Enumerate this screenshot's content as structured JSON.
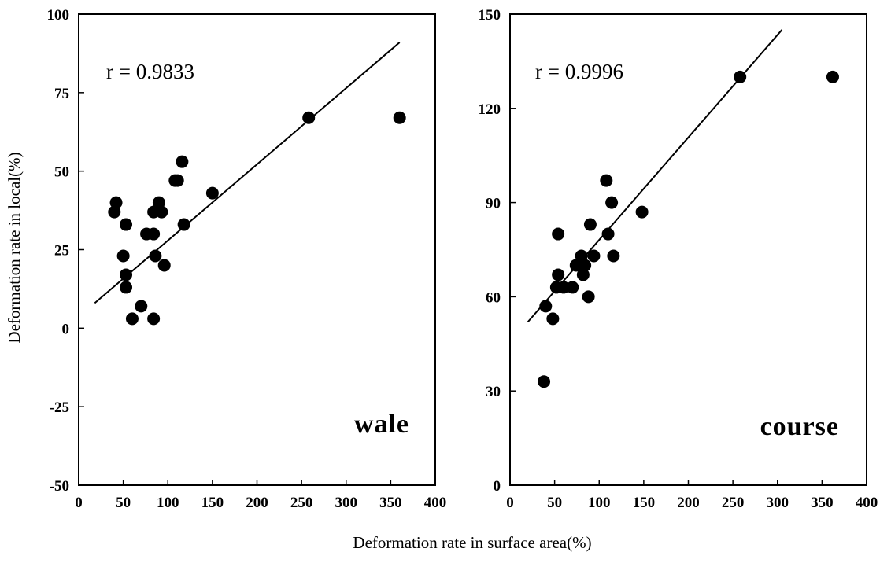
{
  "figure": {
    "shared_xlabel": "Deformation rate in surface area(%)",
    "shared_ylabel": "Deformation rate in local(%)"
  },
  "chart_data": [
    {
      "type": "scatter",
      "panel_label": "wale",
      "annotation": "r  =  0.9833",
      "xlim": [
        0,
        400
      ],
      "ylim": [
        -50,
        100
      ],
      "xticks": [
        "0",
        "50",
        "100",
        "150",
        "200",
        "250",
        "300",
        "350",
        "400"
      ],
      "yticks": [
        "100",
        "75",
        "50",
        "25",
        "0",
        "-25",
        "-50"
      ],
      "xtick_values": [
        0,
        50,
        100,
        150,
        200,
        250,
        300,
        350,
        400
      ],
      "ytick_values": [
        100,
        75,
        50,
        25,
        0,
        -25,
        -50
      ],
      "grid": false,
      "points": [
        {
          "x": 40,
          "y": 37
        },
        {
          "x": 42,
          "y": 40
        },
        {
          "x": 50,
          "y": 23
        },
        {
          "x": 53,
          "y": 33
        },
        {
          "x": 53,
          "y": 17
        },
        {
          "x": 53,
          "y": 13
        },
        {
          "x": 60,
          "y": 3
        },
        {
          "x": 70,
          "y": 7
        },
        {
          "x": 76,
          "y": 30
        },
        {
          "x": 84,
          "y": 30
        },
        {
          "x": 84,
          "y": 37
        },
        {
          "x": 84,
          "y": 3
        },
        {
          "x": 86,
          "y": 23
        },
        {
          "x": 90,
          "y": 40
        },
        {
          "x": 93,
          "y": 37
        },
        {
          "x": 96,
          "y": 20
        },
        {
          "x": 108,
          "y": 47
        },
        {
          "x": 111,
          "y": 47
        },
        {
          "x": 116,
          "y": 53
        },
        {
          "x": 118,
          "y": 33
        },
        {
          "x": 150,
          "y": 43
        },
        {
          "x": 258,
          "y": 67
        },
        {
          "x": 360,
          "y": 67
        }
      ],
      "fit_line": {
        "x": [
          18,
          360
        ],
        "y": [
          8,
          91
        ]
      }
    },
    {
      "type": "scatter",
      "panel_label": "course",
      "annotation": "r  =  0.9996",
      "xlim": [
        0,
        400
      ],
      "ylim": [
        0,
        150
      ],
      "xticks": [
        "0",
        "50",
        "100",
        "150",
        "200",
        "250",
        "300",
        "350",
        "400"
      ],
      "yticks": [
        "150",
        "120",
        "90",
        "60",
        "30",
        "0"
      ],
      "xtick_values": [
        0,
        50,
        100,
        150,
        200,
        250,
        300,
        350,
        400
      ],
      "ytick_values": [
        150,
        120,
        90,
        60,
        30,
        0
      ],
      "grid": false,
      "points": [
        {
          "x": 38,
          "y": 33
        },
        {
          "x": 40,
          "y": 57
        },
        {
          "x": 48,
          "y": 53
        },
        {
          "x": 52,
          "y": 63
        },
        {
          "x": 54,
          "y": 67
        },
        {
          "x": 54,
          "y": 80
        },
        {
          "x": 60,
          "y": 63
        },
        {
          "x": 70,
          "y": 63
        },
        {
          "x": 74,
          "y": 70
        },
        {
          "x": 80,
          "y": 73
        },
        {
          "x": 82,
          "y": 67
        },
        {
          "x": 84,
          "y": 70
        },
        {
          "x": 88,
          "y": 60
        },
        {
          "x": 90,
          "y": 83
        },
        {
          "x": 94,
          "y": 73
        },
        {
          "x": 108,
          "y": 97
        },
        {
          "x": 110,
          "y": 80
        },
        {
          "x": 114,
          "y": 90
        },
        {
          "x": 116,
          "y": 73
        },
        {
          "x": 148,
          "y": 87
        },
        {
          "x": 258,
          "y": 130
        },
        {
          "x": 362,
          "y": 130
        }
      ],
      "fit_line": {
        "x": [
          20,
          305
        ],
        "y": [
          52,
          145
        ]
      }
    }
  ]
}
